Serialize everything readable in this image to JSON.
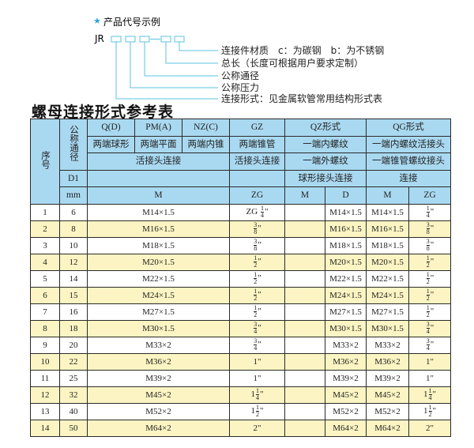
{
  "example": {
    "star_icon": "star-icon",
    "heading": "产品代号示例",
    "code_prefix": "JR",
    "accent": "#5bc3e0",
    "labels": [
      "连接件材质　c：为碳钢　b：为不锈钢",
      "总长（长度可根据用户要求定制）",
      "公称通径",
      "公称压力",
      "连接形式：见金属软管常用结构形式表"
    ]
  },
  "table_title": "螺母连接形式参考表",
  "header": {
    "seq": "序号",
    "dn": "公称通径",
    "d1": "D1",
    "mm": "mm",
    "row1": [
      "Q(D)",
      "PM(A)",
      "NZ(C)",
      "GZ",
      "QZ形式",
      "QG形式"
    ],
    "row2": [
      "两端球形",
      "两端平面",
      "两端内锥",
      "两端锥管",
      "一端内螺纹",
      "一端内螺纹活接头"
    ],
    "row3": [
      "活接头连接",
      "活接头连接",
      "一端外螺纹",
      "一端锥管螺纹接头"
    ],
    "row4": [
      "",
      "",
      "球形接头连接",
      "连接"
    ],
    "row5": [
      "M",
      "ZG",
      "M",
      "D",
      "M",
      "ZG"
    ]
  },
  "rows": [
    {
      "no": "1",
      "d1": "6",
      "m": "M14×1.5",
      "zg": {
        "pre": "ZG ",
        "num": "1",
        "den": "4",
        "suf": "\""
      },
      "qzm": "",
      "qzd": "M14×1.5",
      "qgm": "M14×1.5",
      "qgzg": {
        "pre": "",
        "num": "1",
        "den": "4",
        "suf": "\""
      }
    },
    {
      "no": "2",
      "d1": "8",
      "m": "M16×1.5",
      "zg": {
        "pre": "",
        "num": "3",
        "den": "8",
        "suf": "\""
      },
      "qzm": "",
      "qzd": "M16×1.5",
      "qgm": "M16×1.5",
      "qgzg": {
        "pre": "",
        "num": "3",
        "den": "8",
        "suf": "\""
      }
    },
    {
      "no": "3",
      "d1": "10",
      "m": "M18×1.5",
      "zg": {
        "pre": "",
        "num": "3",
        "den": "8",
        "suf": "\""
      },
      "qzm": "",
      "qzd": "M18×1.5",
      "qgm": "M18×1.5",
      "qgzg": {
        "pre": "",
        "num": "3",
        "den": "8",
        "suf": "\""
      }
    },
    {
      "no": "4",
      "d1": "12",
      "m": "M20×1.5",
      "zg": {
        "pre": "",
        "num": "1",
        "den": "2",
        "suf": "\""
      },
      "qzm": "",
      "qzd": "M20×1.5",
      "qgm": "M20×1.5",
      "qgzg": {
        "pre": "",
        "num": "1",
        "den": "2",
        "suf": "\""
      }
    },
    {
      "no": "5",
      "d1": "14",
      "m": "M22×1.5",
      "zg": {
        "pre": "",
        "num": "1",
        "den": "2",
        "suf": "\""
      },
      "qzm": "",
      "qzd": "M22×1.5",
      "qgm": "M22×1.5",
      "qgzg": {
        "pre": "",
        "num": "1",
        "den": "2",
        "suf": "\""
      }
    },
    {
      "no": "6",
      "d1": "15",
      "m": "M24×1.5",
      "zg": {
        "pre": "",
        "num": "1",
        "den": "2",
        "suf": "\""
      },
      "qzm": "",
      "qzd": "M24×1.5",
      "qgm": "M24×1.5",
      "qgzg": {
        "pre": "",
        "num": "1",
        "den": "2",
        "suf": "\""
      }
    },
    {
      "no": "7",
      "d1": "16",
      "m": "M27×1.5",
      "zg": {
        "pre": "",
        "num": "1",
        "den": "2",
        "suf": "\""
      },
      "qzm": "",
      "qzd": "M27×1.5",
      "qgm": "M27×1.5",
      "qgzg": {
        "pre": "",
        "num": "1",
        "den": "2",
        "suf": "\""
      }
    },
    {
      "no": "8",
      "d1": "18",
      "m": "M30×1.5",
      "zg": {
        "pre": "",
        "num": "3",
        "den": "4",
        "suf": "\""
      },
      "qzm": "",
      "qzd": "M30×1.5",
      "qgm": "M30×1.5",
      "qgzg": {
        "pre": "",
        "num": "3",
        "den": "4",
        "suf": "\""
      }
    },
    {
      "no": "9",
      "d1": "20",
      "m": "M33×2",
      "zg": {
        "pre": "",
        "num": "3",
        "den": "4",
        "suf": "\""
      },
      "qzm": "",
      "qzd": "M33×2",
      "qgm": "M33×2",
      "qgzg": {
        "pre": "",
        "num": "3",
        "den": "4",
        "suf": "\""
      }
    },
    {
      "no": "10",
      "d1": "22",
      "m": "M36×2",
      "zg": {
        "pre": "1\"",
        "num": "",
        "den": "",
        "suf": ""
      },
      "qzm": "",
      "qzd": "M36×2",
      "qgm": "M36×2",
      "qgzg": {
        "pre": "1\"",
        "num": "",
        "den": "",
        "suf": ""
      }
    },
    {
      "no": "11",
      "d1": "25",
      "m": "M39×2",
      "zg": {
        "pre": "1\"",
        "num": "",
        "den": "",
        "suf": ""
      },
      "qzm": "",
      "qzd": "M39×2",
      "qgm": "M39×2",
      "qgzg": {
        "pre": "1\"",
        "num": "",
        "den": "",
        "suf": ""
      }
    },
    {
      "no": "12",
      "d1": "32",
      "m": "M45×2",
      "zg": {
        "pre": "1",
        "num": "1",
        "den": "4",
        "suf": "\""
      },
      "qzm": "",
      "qzd": "M45×2",
      "qgm": "M45×2",
      "qgzg": {
        "pre": "1",
        "num": "1",
        "den": "4",
        "suf": "\""
      }
    },
    {
      "no": "13",
      "d1": "40",
      "m": "M52×2",
      "zg": {
        "pre": "1",
        "num": "1",
        "den": "2",
        "suf": "\""
      },
      "qzm": "",
      "qzd": "M52×2",
      "qgm": "M52×2",
      "qgzg": {
        "pre": "1",
        "num": "1",
        "den": "2",
        "suf": "\""
      }
    },
    {
      "no": "14",
      "d1": "50",
      "m": "M64×2",
      "zg": {
        "pre": "2\"",
        "num": "",
        "den": "",
        "suf": ""
      },
      "qzm": "",
      "qzd": "M64×2",
      "qgm": "M64×2",
      "qgzg": {
        "pre": "2\"",
        "num": "",
        "den": "",
        "suf": ""
      }
    }
  ]
}
